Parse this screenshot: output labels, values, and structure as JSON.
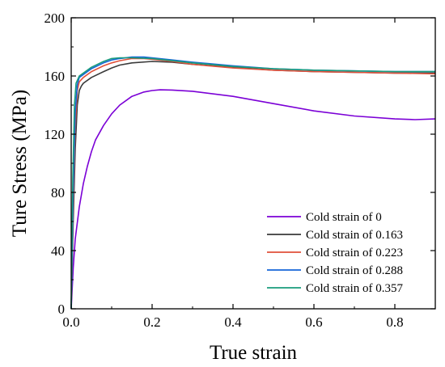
{
  "chart_data": {
    "type": "line",
    "xlabel": "True strain",
    "ylabel": "Ture Stress (MPa)",
    "xlim": [
      0,
      0.9
    ],
    "ylim": [
      0,
      200
    ],
    "xticks": [
      "0.0",
      "0.2",
      "0.4",
      "0.6",
      "0.8"
    ],
    "xtick_values": [
      0,
      0.2,
      0.4,
      0.6,
      0.8
    ],
    "yticks": [
      "0",
      "40",
      "80",
      "120",
      "160",
      "200"
    ],
    "ytick_values": [
      0,
      40,
      80,
      120,
      160,
      200
    ],
    "grid": false,
    "legend_position": "bottom-right",
    "series": [
      {
        "name": "Cold strain of 0",
        "color": "#7b00d6",
        "points": [
          [
            0,
            0
          ],
          [
            0.005,
            28
          ],
          [
            0.01,
            48
          ],
          [
            0.02,
            70
          ],
          [
            0.03,
            86
          ],
          [
            0.04,
            98
          ],
          [
            0.05,
            108
          ],
          [
            0.06,
            116
          ],
          [
            0.08,
            126
          ],
          [
            0.1,
            134
          ],
          [
            0.12,
            140
          ],
          [
            0.15,
            146
          ],
          [
            0.18,
            149
          ],
          [
            0.2,
            150
          ],
          [
            0.22,
            150.5
          ],
          [
            0.25,
            150.3
          ],
          [
            0.3,
            149.5
          ],
          [
            0.4,
            146
          ],
          [
            0.5,
            141
          ],
          [
            0.6,
            136
          ],
          [
            0.7,
            132.5
          ],
          [
            0.8,
            130.5
          ],
          [
            0.85,
            130
          ],
          [
            0.9,
            130.5
          ]
        ]
      },
      {
        "name": "Cold strain of 0.163",
        "color": "#3a3a3a",
        "points": [
          [
            0,
            0
          ],
          [
            0.005,
            60
          ],
          [
            0.01,
            110
          ],
          [
            0.015,
            140
          ],
          [
            0.02,
            150
          ],
          [
            0.025,
            153
          ],
          [
            0.03,
            155
          ],
          [
            0.05,
            159
          ],
          [
            0.08,
            163
          ],
          [
            0.1,
            165.5
          ],
          [
            0.12,
            167.5
          ],
          [
            0.15,
            169
          ],
          [
            0.2,
            170
          ],
          [
            0.25,
            169.5
          ],
          [
            0.3,
            168
          ],
          [
            0.4,
            166
          ],
          [
            0.5,
            164
          ],
          [
            0.6,
            163
          ],
          [
            0.7,
            162.5
          ],
          [
            0.8,
            162
          ],
          [
            0.9,
            162
          ]
        ]
      },
      {
        "name": "Cold strain of 0.223",
        "color": "#e0503a",
        "points": [
          [
            0,
            0
          ],
          [
            0.005,
            70
          ],
          [
            0.01,
            125
          ],
          [
            0.015,
            150
          ],
          [
            0.02,
            156
          ],
          [
            0.03,
            159
          ],
          [
            0.05,
            163
          ],
          [
            0.08,
            167
          ],
          [
            0.1,
            169
          ],
          [
            0.12,
            170.5
          ],
          [
            0.15,
            172
          ],
          [
            0.18,
            172
          ],
          [
            0.2,
            171.5
          ],
          [
            0.25,
            170
          ],
          [
            0.3,
            168
          ],
          [
            0.4,
            165.5
          ],
          [
            0.5,
            164
          ],
          [
            0.6,
            163
          ],
          [
            0.7,
            162.5
          ],
          [
            0.8,
            162
          ],
          [
            0.9,
            161.5
          ]
        ]
      },
      {
        "name": "Cold strain of 0.288",
        "color": "#1565d8",
        "points": [
          [
            0,
            0
          ],
          [
            0.005,
            80
          ],
          [
            0.01,
            135
          ],
          [
            0.015,
            154
          ],
          [
            0.02,
            159
          ],
          [
            0.03,
            161
          ],
          [
            0.05,
            165
          ],
          [
            0.08,
            169
          ],
          [
            0.1,
            171
          ],
          [
            0.12,
            172
          ],
          [
            0.15,
            173
          ],
          [
            0.18,
            173
          ],
          [
            0.2,
            172.5
          ],
          [
            0.25,
            171
          ],
          [
            0.3,
            169.5
          ],
          [
            0.4,
            167
          ],
          [
            0.5,
            165
          ],
          [
            0.6,
            164
          ],
          [
            0.7,
            163.5
          ],
          [
            0.8,
            163
          ],
          [
            0.9,
            163
          ]
        ]
      },
      {
        "name": "Cold strain of 0.357",
        "color": "#1a9c7c",
        "points": [
          [
            0,
            0
          ],
          [
            0.004,
            90
          ],
          [
            0.008,
            140
          ],
          [
            0.012,
            155
          ],
          [
            0.02,
            160
          ],
          [
            0.03,
            162
          ],
          [
            0.05,
            166
          ],
          [
            0.08,
            170
          ],
          [
            0.1,
            172
          ],
          [
            0.12,
            172.5
          ],
          [
            0.15,
            172.5
          ],
          [
            0.2,
            172
          ],
          [
            0.25,
            170.5
          ],
          [
            0.3,
            169
          ],
          [
            0.4,
            166.5
          ],
          [
            0.5,
            165
          ],
          [
            0.6,
            164
          ],
          [
            0.7,
            163.5
          ],
          [
            0.8,
            163
          ],
          [
            0.9,
            163
          ]
        ]
      }
    ]
  }
}
